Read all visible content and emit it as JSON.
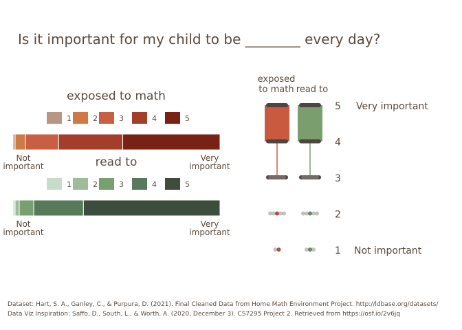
{
  "title": "Is it important for my child to be ________ every day?",
  "colors": {
    "text": "#5a4a3f",
    "math": [
      "#b99683",
      "#cf7a45",
      "#c85e42",
      "#a33e2b",
      "#7a2116"
    ],
    "read": [
      "#c8ddc7",
      "#9dbd98",
      "#789f70",
      "#58795a",
      "#3d4d3d"
    ],
    "boxMath": "#c95a3f",
    "boxRead": "#7a9e6e",
    "dark": "#4e4441"
  },
  "chart_data": [
    {
      "type": "bar",
      "orientation": "horizontal-stacked-100",
      "title": "exposed to math",
      "legend": [
        "1",
        "2",
        "3",
        "4",
        "5"
      ],
      "values_pct": [
        1,
        5,
        16,
        31,
        47
      ],
      "axis_left_label": "Not important",
      "axis_right_label": "Very important"
    },
    {
      "type": "bar",
      "orientation": "horizontal-stacked-100",
      "title": "read to",
      "legend": [
        "1",
        "2",
        "3",
        "4",
        "5"
      ],
      "values_pct": [
        1,
        2,
        7,
        24,
        66
      ],
      "axis_left_label": "Not important",
      "axis_right_label": "Very important"
    },
    {
      "type": "box",
      "y_scale": [
        1,
        5
      ],
      "y_ticks": [
        "1",
        "2",
        "3",
        "4",
        "5"
      ],
      "y_tick_annotations": {
        "5": "Very important",
        "1": "Not important"
      },
      "series": [
        {
          "name": "exposed to math",
          "q1": 4,
          "median": 5,
          "q3": 5,
          "whisker_low": 3,
          "whisker_high": 5,
          "outliers": [
            2,
            2,
            2,
            2,
            2,
            1,
            1
          ]
        },
        {
          "name": "read to",
          "q1": 4,
          "median": 5,
          "q3": 5,
          "whisker_low": 3,
          "whisker_high": 5,
          "outliers": [
            2,
            2,
            2,
            2,
            2,
            1,
            1,
            1
          ]
        }
      ]
    }
  ],
  "footer": {
    "line1": "Dataset: Hart, S. A., Ganley, C., & Purpura, D. (2021). Final Cleaned Data from Home Math Environment Project. http://ldbase.org/datasets/",
    "line2": "Data Viz Inspiration: Saffo, D., South, L., & Worth, A. (2020, December 3). CS7295 Project 2. Retrieved from https://osf.io/2v6jq"
  }
}
